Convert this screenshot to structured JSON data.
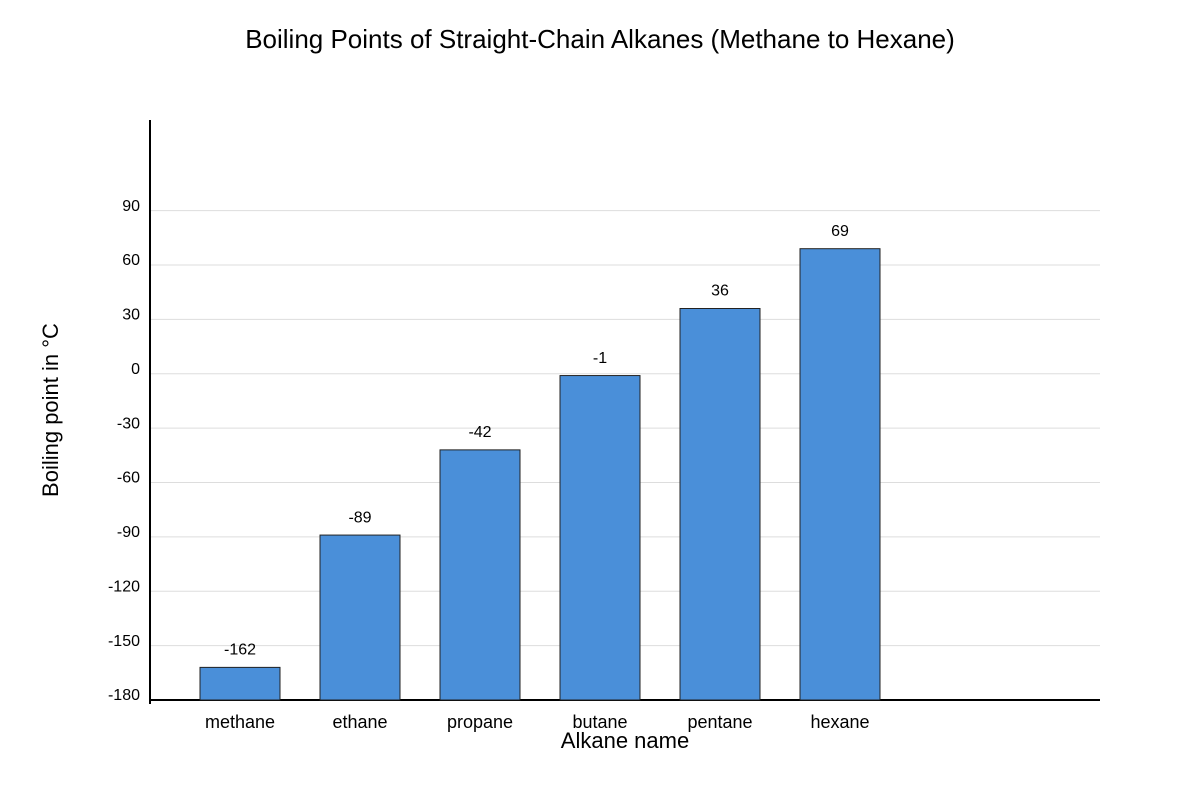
{
  "chart_data": {
    "type": "bar",
    "title": "Boiling Points of Straight-Chain Alkanes (Methane to Hexane)",
    "x_label": "Alkane name",
    "y_label": "Boiling point in °C",
    "categories": [
      "methane",
      "ethane",
      "propane",
      "butane",
      "pentane",
      "hexane"
    ],
    "values": [
      -162,
      -89,
      -42,
      -1,
      36,
      69
    ],
    "color": "#4a8fd9",
    "ylim": [
      -180,
      140
    ],
    "yticks": [
      -180,
      -150,
      -120,
      -90,
      -60,
      -30,
      0,
      30,
      60,
      90
    ],
    "grid": true
  }
}
